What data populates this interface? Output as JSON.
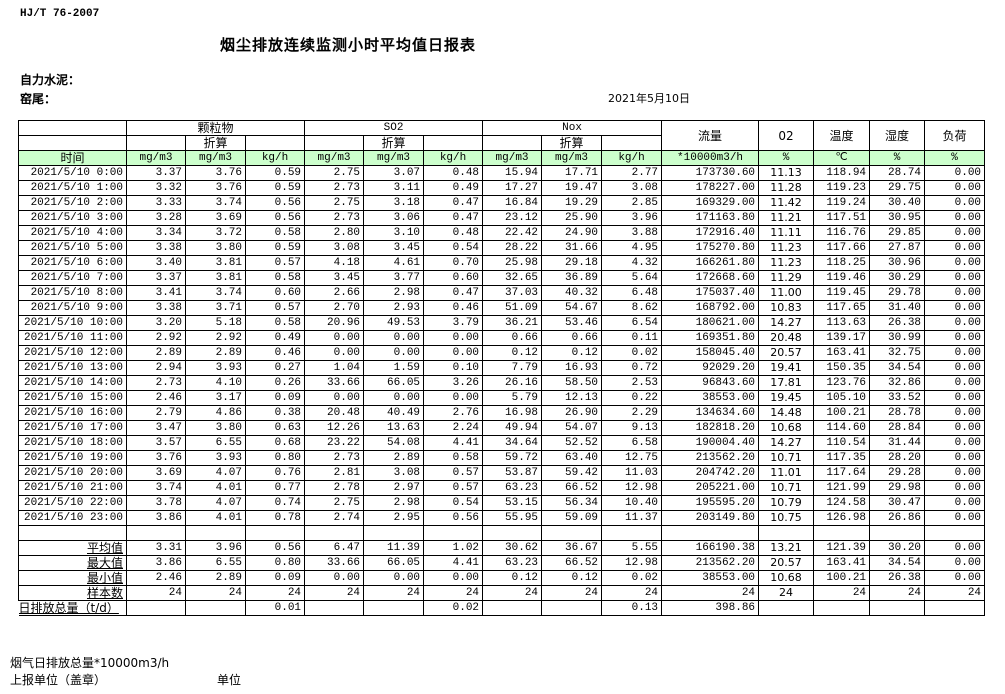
{
  "header": {
    "standard": "HJ/T  76-2007",
    "title": "烟尘排放连续监测小时平均值日报表",
    "company": "自力水泥：",
    "kiln": "窑尾：",
    "date": "2021年5月10日"
  },
  "table": {
    "groups": [
      "颗粒物",
      "SO2",
      "Nox"
    ],
    "converted_label": "折算",
    "single_columns": [
      "流量",
      "02",
      "温度",
      "湿度",
      "负荷"
    ],
    "time_label": "时间",
    "units": [
      "mg/m3",
      "mg/m3",
      "kg/h",
      "mg/m3",
      "mg/m3",
      "kg/h",
      "mg/m3",
      "mg/m3",
      "kg/h",
      "*10000m3/h",
      "%",
      "℃",
      "%",
      "%"
    ],
    "rows": [
      [
        "2021/5/10 0:00",
        "3.37",
        "3.76",
        "0.59",
        "2.75",
        "3.07",
        "0.48",
        "15.94",
        "17.71",
        "2.77",
        "173730.60",
        "11.13",
        "118.94",
        "28.74",
        "0.00"
      ],
      [
        "2021/5/10 1:00",
        "3.32",
        "3.76",
        "0.59",
        "2.73",
        "3.11",
        "0.49",
        "17.27",
        "19.47",
        "3.08",
        "178227.00",
        "11.28",
        "119.23",
        "29.75",
        "0.00"
      ],
      [
        "2021/5/10 2:00",
        "3.33",
        "3.74",
        "0.56",
        "2.75",
        "3.18",
        "0.47",
        "16.84",
        "19.29",
        "2.85",
        "169329.00",
        "11.42",
        "119.24",
        "30.40",
        "0.00"
      ],
      [
        "2021/5/10 3:00",
        "3.28",
        "3.69",
        "0.56",
        "2.73",
        "3.06",
        "0.47",
        "23.12",
        "25.90",
        "3.96",
        "171163.80",
        "11.21",
        "117.51",
        "30.95",
        "0.00"
      ],
      [
        "2021/5/10 4:00",
        "3.34",
        "3.72",
        "0.58",
        "2.80",
        "3.10",
        "0.48",
        "22.42",
        "24.90",
        "3.88",
        "172916.40",
        "11.11",
        "116.76",
        "29.85",
        "0.00"
      ],
      [
        "2021/5/10 5:00",
        "3.38",
        "3.80",
        "0.59",
        "3.08",
        "3.45",
        "0.54",
        "28.22",
        "31.66",
        "4.95",
        "175270.80",
        "11.23",
        "117.66",
        "27.87",
        "0.00"
      ],
      [
        "2021/5/10 6:00",
        "3.40",
        "3.81",
        "0.57",
        "4.18",
        "4.61",
        "0.70",
        "25.98",
        "29.18",
        "4.32",
        "166261.80",
        "11.23",
        "118.25",
        "30.96",
        "0.00"
      ],
      [
        "2021/5/10 7:00",
        "3.37",
        "3.81",
        "0.58",
        "3.45",
        "3.77",
        "0.60",
        "32.65",
        "36.89",
        "5.64",
        "172668.60",
        "11.29",
        "119.46",
        "30.29",
        "0.00"
      ],
      [
        "2021/5/10 8:00",
        "3.41",
        "3.74",
        "0.60",
        "2.66",
        "2.98",
        "0.47",
        "37.03",
        "40.32",
        "6.48",
        "175037.40",
        "11.00",
        "119.45",
        "29.78",
        "0.00"
      ],
      [
        "2021/5/10 9:00",
        "3.38",
        "3.71",
        "0.57",
        "2.70",
        "2.93",
        "0.46",
        "51.09",
        "54.67",
        "8.62",
        "168792.00",
        "10.83",
        "117.65",
        "31.40",
        "0.00"
      ],
      [
        "2021/5/10 10:00",
        "3.20",
        "5.18",
        "0.58",
        "20.96",
        "49.53",
        "3.79",
        "36.21",
        "53.46",
        "6.54",
        "180621.00",
        "14.27",
        "113.63",
        "26.38",
        "0.00"
      ],
      [
        "2021/5/10 11:00",
        "2.92",
        "2.92",
        "0.49",
        "0.00",
        "0.00",
        "0.00",
        "0.66",
        "0.66",
        "0.11",
        "169351.80",
        "20.48",
        "139.17",
        "30.99",
        "0.00"
      ],
      [
        "2021/5/10 12:00",
        "2.89",
        "2.89",
        "0.46",
        "0.00",
        "0.00",
        "0.00",
        "0.12",
        "0.12",
        "0.02",
        "158045.40",
        "20.57",
        "163.41",
        "32.75",
        "0.00"
      ],
      [
        "2021/5/10 13:00",
        "2.94",
        "3.93",
        "0.27",
        "1.04",
        "1.59",
        "0.10",
        "7.79",
        "16.93",
        "0.72",
        "92029.20",
        "19.41",
        "150.35",
        "34.54",
        "0.00"
      ],
      [
        "2021/5/10 14:00",
        "2.73",
        "4.10",
        "0.26",
        "33.66",
        "66.05",
        "3.26",
        "26.16",
        "58.50",
        "2.53",
        "96843.60",
        "17.81",
        "123.76",
        "32.86",
        "0.00"
      ],
      [
        "2021/5/10 15:00",
        "2.46",
        "3.17",
        "0.09",
        "0.00",
        "0.00",
        "0.00",
        "5.79",
        "12.13",
        "0.22",
        "38553.00",
        "19.45",
        "105.10",
        "33.52",
        "0.00"
      ],
      [
        "2021/5/10 16:00",
        "2.79",
        "4.86",
        "0.38",
        "20.48",
        "40.49",
        "2.76",
        "16.98",
        "26.90",
        "2.29",
        "134634.60",
        "14.48",
        "100.21",
        "28.78",
        "0.00"
      ],
      [
        "2021/5/10 17:00",
        "3.47",
        "3.80",
        "0.63",
        "12.26",
        "13.63",
        "2.24",
        "49.94",
        "54.07",
        "9.13",
        "182818.20",
        "10.68",
        "114.60",
        "28.84",
        "0.00"
      ],
      [
        "2021/5/10 18:00",
        "3.57",
        "6.55",
        "0.68",
        "23.22",
        "54.08",
        "4.41",
        "34.64",
        "52.52",
        "6.58",
        "190004.40",
        "14.27",
        "110.54",
        "31.44",
        "0.00"
      ],
      [
        "2021/5/10 19:00",
        "3.76",
        "3.93",
        "0.80",
        "2.73",
        "2.89",
        "0.58",
        "59.72",
        "63.40",
        "12.75",
        "213562.20",
        "10.71",
        "117.35",
        "28.20",
        "0.00"
      ],
      [
        "2021/5/10 20:00",
        "3.69",
        "4.07",
        "0.76",
        "2.81",
        "3.08",
        "0.57",
        "53.87",
        "59.42",
        "11.03",
        "204742.20",
        "11.01",
        "117.64",
        "29.28",
        "0.00"
      ],
      [
        "2021/5/10 21:00",
        "3.74",
        "4.01",
        "0.77",
        "2.78",
        "2.97",
        "0.57",
        "63.23",
        "66.52",
        "12.98",
        "205221.00",
        "10.71",
        "121.99",
        "29.98",
        "0.00"
      ],
      [
        "2021/5/10 22:00",
        "3.78",
        "4.07",
        "0.74",
        "2.75",
        "2.98",
        "0.54",
        "53.15",
        "56.34",
        "10.40",
        "195595.20",
        "10.79",
        "124.58",
        "30.47",
        "0.00"
      ],
      [
        "2021/5/10 23:00",
        "3.86",
        "4.01",
        "0.78",
        "2.74",
        "2.95",
        "0.56",
        "55.95",
        "59.09",
        "11.37",
        "203149.80",
        "10.75",
        "126.98",
        "26.86",
        "0.00"
      ]
    ],
    "stats": [
      [
        "平均值",
        "3.31",
        "3.96",
        "0.56",
        "6.47",
        "11.39",
        "1.02",
        "30.62",
        "36.67",
        "5.55",
        "166190.38",
        "13.21",
        "121.39",
        "30.20",
        "0.00"
      ],
      [
        "最大值",
        "3.86",
        "6.55",
        "0.80",
        "33.66",
        "66.05",
        "4.41",
        "63.23",
        "66.52",
        "12.98",
        "213562.20",
        "20.57",
        "163.41",
        "34.54",
        "0.00"
      ],
      [
        "最小值",
        "2.46",
        "2.89",
        "0.09",
        "0.00",
        "0.00",
        "0.00",
        "0.12",
        "0.12",
        "0.02",
        "38553.00",
        "10.68",
        "100.21",
        "26.38",
        "0.00"
      ],
      [
        "样本数",
        "24",
        "24",
        "24",
        "24",
        "24",
        "24",
        "24",
        "24",
        "24",
        "24",
        "24",
        "24",
        "24",
        "24"
      ]
    ],
    "daily_total": [
      "日排放总量（t/d）",
      "",
      "",
      "0.01",
      "",
      "",
      "0.02",
      "",
      "",
      "0.13",
      "398.86",
      "",
      "",
      "",
      ""
    ]
  },
  "footer": {
    "flue_gas_total": "烟气日排放总量*10000m3/h",
    "reporting_unit": "上报单位（盖章）",
    "unit": "单位"
  }
}
